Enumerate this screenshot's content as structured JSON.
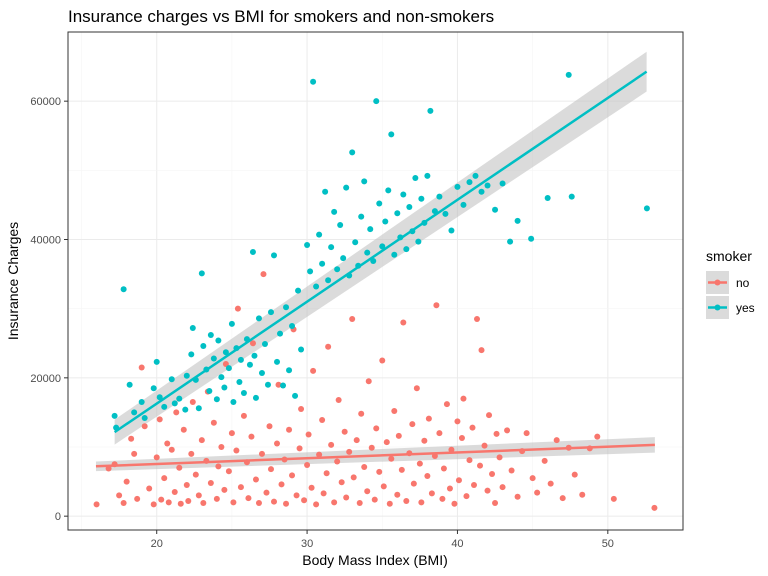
{
  "chart_data": {
    "type": "scatter",
    "title": "Insurance charges vs BMI for smokers and non-smokers",
    "xlabel": "Body Mass Index (BMI)",
    "ylabel": "Insurance Charges",
    "xlim": [
      14.1,
      55.0
    ],
    "ylim": [
      -2000,
      70000
    ],
    "x_ticks": [
      20,
      30,
      40,
      50
    ],
    "y_ticks": [
      0,
      20000,
      40000,
      60000
    ],
    "x_tick_labels": [
      "20",
      "30",
      "40",
      "50"
    ],
    "y_tick_labels": [
      "0",
      "20000",
      "40000",
      "60000"
    ],
    "grid": true,
    "legend": {
      "title": "smoker",
      "position": "right",
      "entries": [
        "no",
        "yes"
      ]
    },
    "colors": {
      "no": "#F8766D",
      "yes": "#00BFC4",
      "ribbon": "#bdbdbd"
    },
    "series": [
      {
        "name": "no",
        "points": [
          [
            16.0,
            1700
          ],
          [
            16.8,
            6900
          ],
          [
            17.2,
            7500
          ],
          [
            17.5,
            3000
          ],
          [
            17.8,
            1900
          ],
          [
            18.0,
            5000
          ],
          [
            18.3,
            11200
          ],
          [
            18.5,
            9000
          ],
          [
            18.7,
            2500
          ],
          [
            19.0,
            21500
          ],
          [
            19.2,
            13000
          ],
          [
            19.5,
            4000
          ],
          [
            19.8,
            1700
          ],
          [
            20.0,
            8500
          ],
          [
            20.2,
            14000
          ],
          [
            20.3,
            2400
          ],
          [
            20.5,
            5500
          ],
          [
            20.7,
            10500
          ],
          [
            20.8,
            2000
          ],
          [
            21.0,
            9600
          ],
          [
            21.2,
            3500
          ],
          [
            21.3,
            15000
          ],
          [
            21.5,
            7000
          ],
          [
            21.6,
            1800
          ],
          [
            21.8,
            12500
          ],
          [
            22.0,
            4500
          ],
          [
            22.1,
            2200
          ],
          [
            22.3,
            9000
          ],
          [
            22.4,
            16500
          ],
          [
            22.6,
            6000
          ],
          [
            22.8,
            3000
          ],
          [
            23.0,
            11000
          ],
          [
            23.1,
            1900
          ],
          [
            23.3,
            8000
          ],
          [
            23.4,
            18000
          ],
          [
            23.6,
            4800
          ],
          [
            23.8,
            13500
          ],
          [
            24.0,
            2500
          ],
          [
            24.1,
            7200
          ],
          [
            24.3,
            10000
          ],
          [
            24.5,
            3800
          ],
          [
            24.6,
            22000
          ],
          [
            24.8,
            6500
          ],
          [
            25.0,
            12000
          ],
          [
            25.1,
            2000
          ],
          [
            25.3,
            9500
          ],
          [
            25.4,
            30000
          ],
          [
            25.6,
            4200
          ],
          [
            25.8,
            14500
          ],
          [
            26.0,
            7800
          ],
          [
            26.1,
            2600
          ],
          [
            26.3,
            11500
          ],
          [
            26.4,
            25000
          ],
          [
            26.6,
            5300
          ],
          [
            26.8,
            1900
          ],
          [
            27.0,
            9000
          ],
          [
            27.1,
            35000
          ],
          [
            27.3,
            3400
          ],
          [
            27.5,
            13000
          ],
          [
            27.6,
            6800
          ],
          [
            27.8,
            2100
          ],
          [
            28.0,
            10500
          ],
          [
            28.1,
            19000
          ],
          [
            28.3,
            4600
          ],
          [
            28.5,
            8200
          ],
          [
            28.6,
            1800
          ],
          [
            28.8,
            12500
          ],
          [
            29.0,
            5900
          ],
          [
            29.1,
            27000
          ],
          [
            29.3,
            3000
          ],
          [
            29.5,
            9800
          ],
          [
            29.6,
            15500
          ],
          [
            29.8,
            2300
          ],
          [
            30.0,
            7400
          ],
          [
            30.1,
            11800
          ],
          [
            30.3,
            4100
          ],
          [
            30.4,
            21000
          ],
          [
            30.6,
            1700
          ],
          [
            30.8,
            8900
          ],
          [
            31.0,
            13900
          ],
          [
            31.1,
            3300
          ],
          [
            31.3,
            6200
          ],
          [
            31.4,
            24500
          ],
          [
            31.6,
            10300
          ],
          [
            31.8,
            2000
          ],
          [
            32.0,
            7900
          ],
          [
            32.1,
            16800
          ],
          [
            32.3,
            4900
          ],
          [
            32.5,
            12200
          ],
          [
            32.6,
            2700
          ],
          [
            32.8,
            9300
          ],
          [
            33.0,
            28500
          ],
          [
            33.1,
            5600
          ],
          [
            33.3,
            11000
          ],
          [
            33.5,
            1900
          ],
          [
            33.6,
            14800
          ],
          [
            33.8,
            7100
          ],
          [
            34.0,
            3600
          ],
          [
            34.1,
            19500
          ],
          [
            34.3,
            9900
          ],
          [
            34.5,
            2400
          ],
          [
            34.6,
            12700
          ],
          [
            34.8,
            6400
          ],
          [
            35.0,
            22500
          ],
          [
            35.1,
            4300
          ],
          [
            35.3,
            10700
          ],
          [
            35.5,
            1800
          ],
          [
            35.6,
            8300
          ],
          [
            35.8,
            15200
          ],
          [
            36.0,
            3100
          ],
          [
            36.1,
            11600
          ],
          [
            36.3,
            6700
          ],
          [
            36.4,
            28000
          ],
          [
            36.6,
            2200
          ],
          [
            36.8,
            9100
          ],
          [
            37.0,
            13300
          ],
          [
            37.1,
            4700
          ],
          [
            37.3,
            18500
          ],
          [
            37.5,
            7600
          ],
          [
            37.6,
            2000
          ],
          [
            37.8,
            10900
          ],
          [
            38.0,
            5800
          ],
          [
            38.1,
            14100
          ],
          [
            38.3,
            3300
          ],
          [
            38.5,
            8700
          ],
          [
            38.6,
            30500
          ],
          [
            38.8,
            12000
          ],
          [
            39.0,
            2500
          ],
          [
            39.1,
            6900
          ],
          [
            39.3,
            16200
          ],
          [
            39.5,
            4000
          ],
          [
            39.6,
            9600
          ],
          [
            39.8,
            1800
          ],
          [
            40.0,
            13700
          ],
          [
            40.1,
            5200
          ],
          [
            40.3,
            11300
          ],
          [
            40.4,
            17000
          ],
          [
            40.6,
            2900
          ],
          [
            40.8,
            8100
          ],
          [
            41.0,
            12800
          ],
          [
            41.1,
            4500
          ],
          [
            41.3,
            28500
          ],
          [
            41.5,
            7300
          ],
          [
            41.6,
            24000
          ],
          [
            41.8,
            10200
          ],
          [
            42.0,
            3700
          ],
          [
            42.1,
            14600
          ],
          [
            42.3,
            6100
          ],
          [
            42.5,
            1900
          ],
          [
            42.6,
            11900
          ],
          [
            42.8,
            8500
          ],
          [
            43.0,
            4200
          ],
          [
            43.3,
            12400
          ],
          [
            43.6,
            6600
          ],
          [
            44.0,
            2800
          ],
          [
            44.3,
            9400
          ],
          [
            44.6,
            12000
          ],
          [
            45.0,
            5500
          ],
          [
            45.3,
            3400
          ],
          [
            45.8,
            8000
          ],
          [
            46.2,
            4700
          ],
          [
            46.6,
            11000
          ],
          [
            47.0,
            2600
          ],
          [
            47.4,
            9900
          ],
          [
            47.8,
            6000
          ],
          [
            48.3,
            3100
          ],
          [
            48.8,
            9800
          ],
          [
            49.3,
            11500
          ],
          [
            50.4,
            2500
          ],
          [
            53.1,
            1200
          ]
        ]
      },
      {
        "name": "yes",
        "points": [
          [
            17.2,
            14500
          ],
          [
            17.3,
            12800
          ],
          [
            17.8,
            32800
          ],
          [
            18.2,
            19000
          ],
          [
            18.5,
            15000
          ],
          [
            19.0,
            16500
          ],
          [
            19.2,
            14200
          ],
          [
            19.8,
            18500
          ],
          [
            20.0,
            22300
          ],
          [
            20.2,
            17200
          ],
          [
            20.5,
            15800
          ],
          [
            21.0,
            19800
          ],
          [
            21.2,
            16300
          ],
          [
            21.5,
            17000
          ],
          [
            21.9,
            15400
          ],
          [
            22.0,
            20300
          ],
          [
            22.3,
            23400
          ],
          [
            22.4,
            27200
          ],
          [
            22.6,
            19700
          ],
          [
            22.8,
            15600
          ],
          [
            23.0,
            35100
          ],
          [
            23.1,
            24600
          ],
          [
            23.3,
            21200
          ],
          [
            23.5,
            18100
          ],
          [
            23.6,
            26200
          ],
          [
            23.8,
            22800
          ],
          [
            24.0,
            16900
          ],
          [
            24.1,
            25400
          ],
          [
            24.3,
            20100
          ],
          [
            24.5,
            18600
          ],
          [
            24.6,
            23700
          ],
          [
            24.8,
            21400
          ],
          [
            25.0,
            27800
          ],
          [
            25.1,
            16500
          ],
          [
            25.3,
            24300
          ],
          [
            25.5,
            19400
          ],
          [
            25.6,
            22600
          ],
          [
            25.8,
            17800
          ],
          [
            26.0,
            25600
          ],
          [
            26.2,
            21900
          ],
          [
            26.4,
            38200
          ],
          [
            26.5,
            23200
          ],
          [
            26.6,
            17100
          ],
          [
            26.8,
            28600
          ],
          [
            27.0,
            20700
          ],
          [
            27.2,
            24900
          ],
          [
            27.4,
            19000
          ],
          [
            27.6,
            29500
          ],
          [
            27.8,
            37700
          ],
          [
            28.0,
            22300
          ],
          [
            28.2,
            26400
          ],
          [
            28.4,
            18900
          ],
          [
            28.6,
            30200
          ],
          [
            28.8,
            21100
          ],
          [
            29.0,
            27500
          ],
          [
            29.2,
            17400
          ],
          [
            29.4,
            32600
          ],
          [
            29.6,
            24100
          ],
          [
            30.0,
            39200
          ],
          [
            30.2,
            35400
          ],
          [
            30.4,
            62800
          ],
          [
            30.6,
            33200
          ],
          [
            30.8,
            40700
          ],
          [
            31.0,
            36500
          ],
          [
            31.2,
            46900
          ],
          [
            31.4,
            34100
          ],
          [
            31.6,
            38900
          ],
          [
            31.8,
            44000
          ],
          [
            32.0,
            35700
          ],
          [
            32.2,
            42100
          ],
          [
            32.4,
            37300
          ],
          [
            32.6,
            47500
          ],
          [
            32.8,
            34800
          ],
          [
            33.0,
            52600
          ],
          [
            33.2,
            39600
          ],
          [
            33.4,
            36200
          ],
          [
            33.6,
            43300
          ],
          [
            33.8,
            48400
          ],
          [
            34.0,
            38100
          ],
          [
            34.2,
            41500
          ],
          [
            34.4,
            36900
          ],
          [
            34.6,
            60000
          ],
          [
            34.8,
            45200
          ],
          [
            35.0,
            39000
          ],
          [
            35.2,
            42600
          ],
          [
            35.4,
            47100
          ],
          [
            35.6,
            55200
          ],
          [
            35.8,
            37800
          ],
          [
            36.0,
            43800
          ],
          [
            36.2,
            40300
          ],
          [
            36.4,
            46500
          ],
          [
            36.6,
            38600
          ],
          [
            36.8,
            44700
          ],
          [
            37.0,
            41200
          ],
          [
            37.2,
            48900
          ],
          [
            37.4,
            39700
          ],
          [
            37.6,
            45900
          ],
          [
            37.8,
            42400
          ],
          [
            38.0,
            49200
          ],
          [
            38.2,
            58600
          ],
          [
            38.5,
            44100
          ],
          [
            38.8,
            46200
          ],
          [
            39.2,
            43700
          ],
          [
            39.6,
            41300
          ],
          [
            40.0,
            47600
          ],
          [
            40.4,
            45000
          ],
          [
            40.8,
            48300
          ],
          [
            41.2,
            49200
          ],
          [
            41.6,
            46900
          ],
          [
            42.0,
            47800
          ],
          [
            42.5,
            44300
          ],
          [
            43.0,
            48100
          ],
          [
            43.5,
            39700
          ],
          [
            44.0,
            42700
          ],
          [
            44.9,
            40100
          ],
          [
            46.0,
            46000
          ],
          [
            47.4,
            63800
          ],
          [
            47.6,
            46200
          ],
          [
            52.6,
            44500
          ]
        ]
      }
    ],
    "fits": [
      {
        "name": "no",
        "x_range": [
          15.96,
          53.13
        ],
        "intercept": 5879,
        "slope": 83.35,
        "se": 700
      },
      {
        "name": "yes",
        "x_range": [
          17.2,
          52.58
        ],
        "intercept": -13186,
        "slope": 1473.1,
        "se": 1800
      }
    ]
  }
}
